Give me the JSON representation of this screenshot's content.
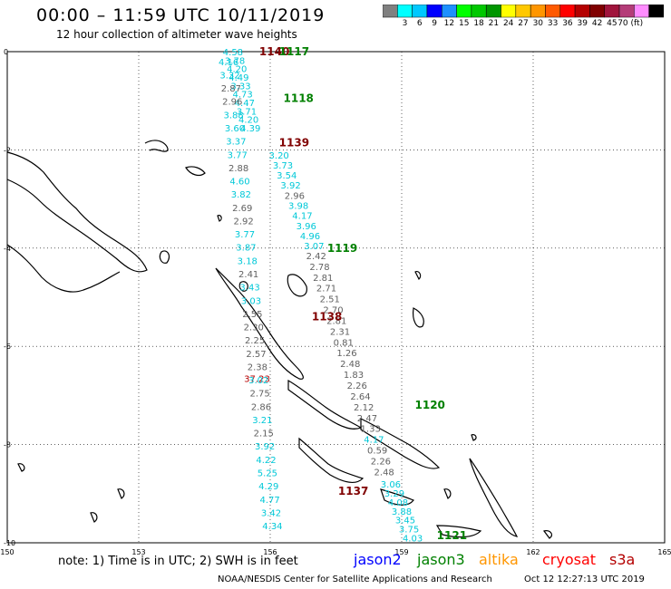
{
  "title": "00:00 – 11:59 UTC 10/11/2019",
  "subtitle": "12 hour collection of altimeter wave heights",
  "colorbar": {
    "colors": [
      "#808080",
      "#00ffff",
      "#00c8ff",
      "#0000ff",
      "#1e90ff",
      "#00ff00",
      "#00c800",
      "#009600",
      "#ffff00",
      "#ffc800",
      "#ff9600",
      "#ff5a00",
      "#ff0000",
      "#b40000",
      "#800000",
      "#a0143c",
      "#b43c78",
      "#ff8cff",
      "#000000"
    ],
    "labels": [
      "3",
      "6",
      "9",
      "12",
      "15",
      "18",
      "21",
      "24",
      "27",
      "30",
      "33",
      "36",
      "39",
      "42",
      "45",
      "70 (ft)"
    ]
  },
  "map_axes": {
    "lon_ticks": [
      150,
      153,
      156,
      159,
      162,
      165
    ],
    "lat_ticks": [
      0,
      -2,
      -4,
      -6,
      -8,
      -10
    ]
  },
  "tracks": [
    {
      "pass": "1140",
      "color": "#800000",
      "values": [
        "37.23"
      ]
    },
    {
      "pass": "1117",
      "color": "#008000",
      "values": []
    },
    {
      "pass": "1118",
      "color": "#008000",
      "values": [
        "4.58",
        "3.78",
        "4.20",
        "4.49",
        "3.33",
        "4.73",
        "4.47",
        "3.71",
        "4.20",
        "4.39"
      ]
    },
    {
      "pass": "1139",
      "color": "#800000",
      "values": [
        "4.16",
        "3.32",
        "2.87",
        "2.96",
        "3.88",
        "3.60",
        "3.37",
        "3.77",
        "2.88",
        "4.60",
        "3.82",
        "2.69",
        "2.92",
        "3.77",
        "3.87",
        "3.18",
        "2.41",
        "3.43",
        "3.03",
        "2.55",
        "2.30",
        "2.25",
        "2.57",
        "2.38",
        "3.02",
        "2.75",
        "2.86",
        "3.21",
        "2.15",
        "3.92",
        "4.22",
        "5.25",
        "4.29",
        "4.77",
        "3.42",
        "4.34"
      ]
    },
    {
      "pass": "1119",
      "color": "#008000",
      "values": [
        "3.20",
        "3.73",
        "3.54",
        "3.92",
        "2.96",
        "3.98",
        "4.17",
        "3.96",
        "4.96",
        "3.07"
      ]
    },
    {
      "pass": "1138",
      "color": "#800000",
      "values": [
        "2.42",
        "2.78",
        "2.81",
        "2.71",
        "2.51",
        "2.70",
        "2.81",
        "2.31",
        "0.81",
        "1.26",
        "2.48",
        "1.83",
        "2.26",
        "2.64",
        "2.12",
        "2.47",
        "1.33",
        "4.17",
        "0.59",
        "2.26",
        "2.48"
      ]
    },
    {
      "pass": "1120",
      "color": "#008000",
      "values": [
        "3.06",
        "3.29",
        "4.08",
        "3.88",
        "3.45",
        "3.75",
        "4.03"
      ]
    },
    {
      "pass": "1137",
      "color": "#800000",
      "values": []
    },
    {
      "pass": "1121",
      "color": "#008000",
      "values": []
    }
  ],
  "note": "note: 1) Time is in UTC; 2) SWH is in feet",
  "legend": [
    {
      "label": "jason2",
      "color": "#0000ff"
    },
    {
      "label": "jason3",
      "color": "#008000"
    },
    {
      "label": "altika",
      "color": "#ff9600"
    },
    {
      "label": "cryosat",
      "color": "#ff0000"
    },
    {
      "label": "s3a",
      "color": "#b40000"
    }
  ],
  "credit": "NOAA/NESDIS Center for Satellite Applications and Research",
  "timestamp": "Oct 12 12:27:13 UTC 2019"
}
